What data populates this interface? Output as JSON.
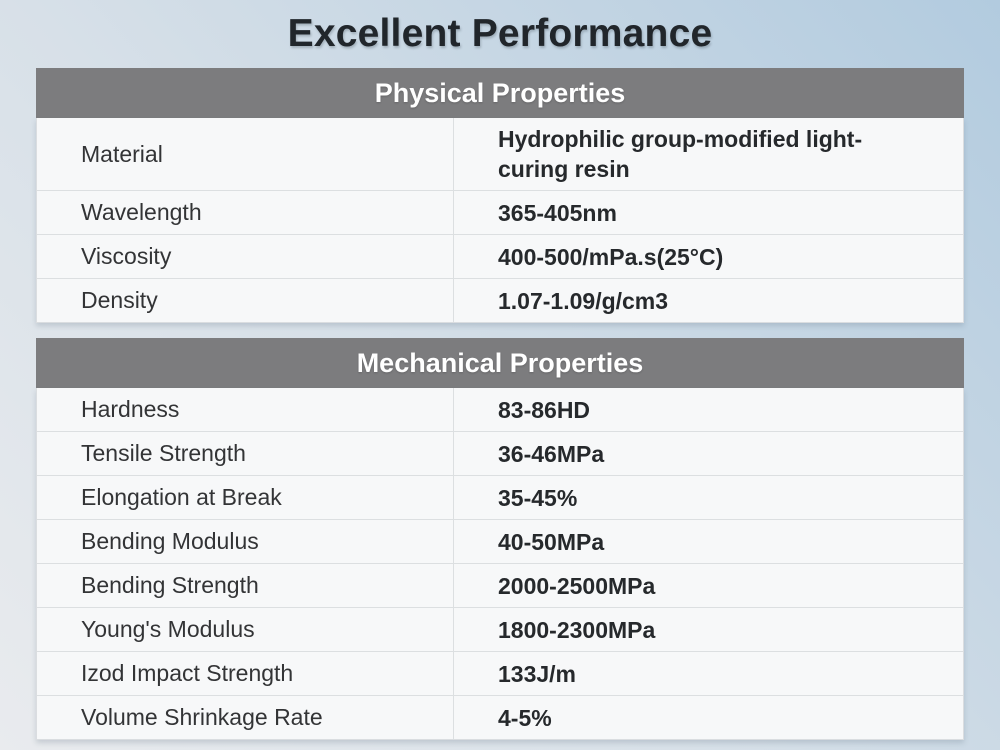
{
  "title": "Excellent Performance",
  "colors": {
    "page_gradient_light": "#e9ebee",
    "page_gradient_blue": "#b2cbdf",
    "table_header_bg": "#7c7c7e",
    "table_header_text": "#ffffff",
    "card_bg": "#f7f8f9",
    "row_divider": "#dcdfe1",
    "title_text": "#21262b",
    "label_text": "#333436",
    "value_text": "#26292c"
  },
  "tables": [
    {
      "header": "Physical Properties",
      "rows": [
        {
          "property": "Material",
          "value": "Hydrophilic group-modified light-curing resin"
        },
        {
          "property": "Wavelength",
          "value": "365-405nm"
        },
        {
          "property": "Viscosity",
          "value": "400-500/mPa.s(25°C)"
        },
        {
          "property": "Density",
          "value": "1.07-1.09/g/cm3"
        }
      ]
    },
    {
      "header": "Mechanical Properties",
      "rows": [
        {
          "property": "Hardness",
          "value": "83-86HD"
        },
        {
          "property": "Tensile Strength",
          "value": "36-46MPa"
        },
        {
          "property": "Elongation at Break",
          "value": "35-45%"
        },
        {
          "property": "Bending Modulus",
          "value": "40-50MPa"
        },
        {
          "property": "Bending Strength",
          "value": "2000-2500MPa"
        },
        {
          "property": "Young's Modulus",
          "value": "1800-2300MPa"
        },
        {
          "property": "Izod Impact Strength",
          "value": "133J/m"
        },
        {
          "property": "Volume Shrinkage Rate",
          "value": "4-5%"
        }
      ]
    }
  ]
}
